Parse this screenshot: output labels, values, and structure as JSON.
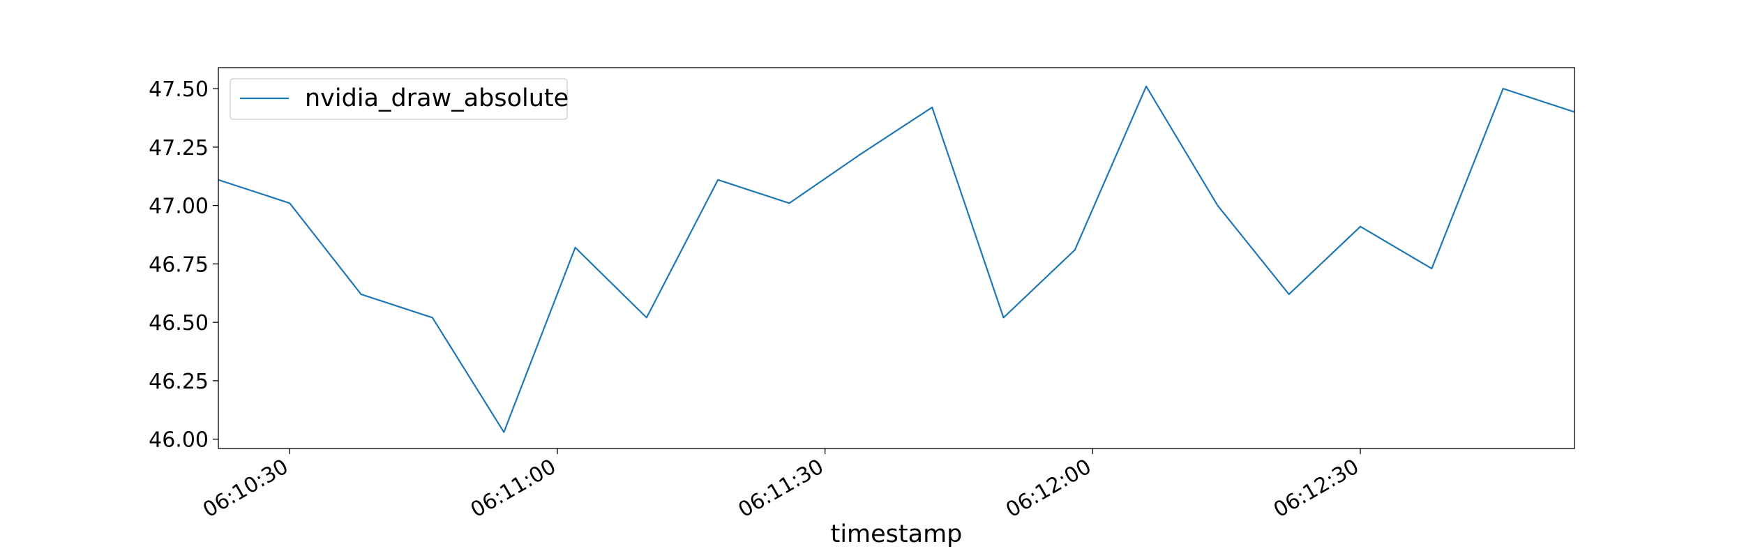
{
  "chart_data": {
    "type": "line",
    "title": "",
    "xlabel": "timestamp",
    "ylabel": "",
    "x": [
      "06:10:22",
      "06:10:30",
      "06:10:38",
      "06:10:46",
      "06:10:54",
      "06:11:02",
      "06:11:10",
      "06:11:18",
      "06:11:26",
      "06:11:34",
      "06:11:42",
      "06:11:50",
      "06:11:58",
      "06:12:06",
      "06:12:14",
      "06:12:22",
      "06:12:30",
      "06:12:38",
      "06:12:46",
      "06:12:54"
    ],
    "series": [
      {
        "name": "nvidia_draw_absolute",
        "color": "#1f77b4",
        "values": [
          47.11,
          47.01,
          46.62,
          46.52,
          46.03,
          46.82,
          46.52,
          47.11,
          47.01,
          47.22,
          47.42,
          46.52,
          46.81,
          47.51,
          47.0,
          46.62,
          46.91,
          46.73,
          47.5,
          47.4
        ]
      }
    ],
    "xlim": [
      "06:10:22",
      "06:12:54"
    ],
    "ylim": [
      45.96,
      47.59
    ],
    "x_ticks": [
      "06:10:30",
      "06:11:00",
      "06:11:30",
      "06:12:00",
      "06:12:30"
    ],
    "y_ticks": [
      "46.00",
      "46.25",
      "46.50",
      "46.75",
      "47.00",
      "47.25",
      "47.50"
    ],
    "legend": "upper-left",
    "grid": false
  }
}
